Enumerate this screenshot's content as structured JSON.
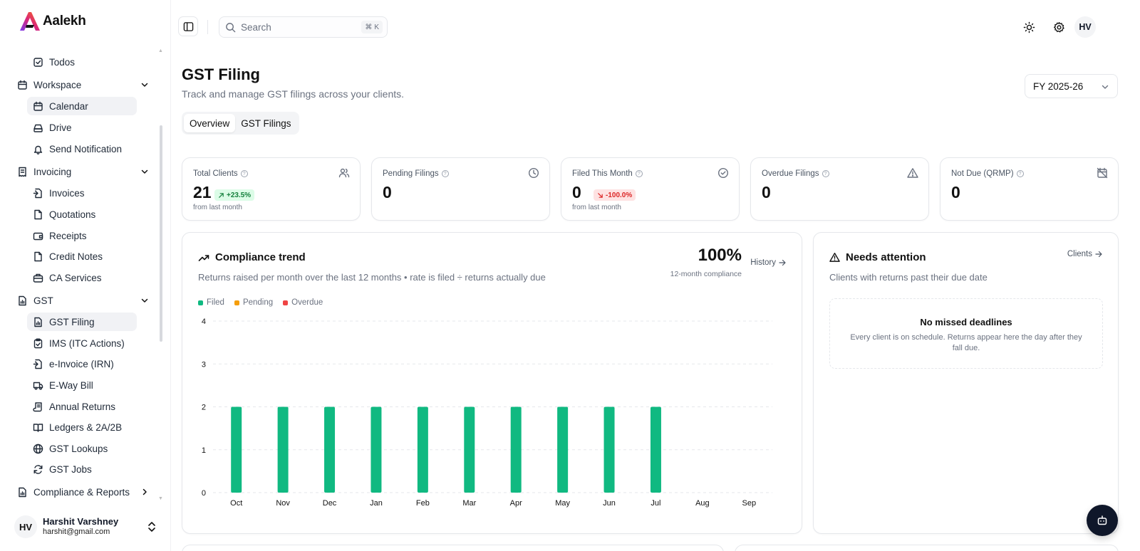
{
  "brand": {
    "name": "Aalekh"
  },
  "sidebar": {
    "items": [
      {
        "type": "sub",
        "label": "Todos",
        "icon": "square-check-icon",
        "active": false
      },
      {
        "type": "group",
        "label": "Workspace",
        "icon": "calendar-icon"
      },
      {
        "type": "sub",
        "label": "Calendar",
        "icon": "calendar-icon",
        "active": true
      },
      {
        "type": "sub",
        "label": "Drive",
        "icon": "hard-drive-icon",
        "active": false
      },
      {
        "type": "sub",
        "label": "Send Notification",
        "icon": "bell-icon",
        "active": false
      },
      {
        "type": "group",
        "label": "Invoicing",
        "icon": "receipt-icon"
      },
      {
        "type": "sub",
        "label": "Invoices",
        "icon": "file-import-icon",
        "active": false
      },
      {
        "type": "sub",
        "label": "Quotations",
        "icon": "file-quote-icon",
        "active": false
      },
      {
        "type": "sub",
        "label": "Receipts",
        "icon": "wallet-icon",
        "active": false
      },
      {
        "type": "sub",
        "label": "Credit Notes",
        "icon": "file-icon",
        "active": false
      },
      {
        "type": "sub",
        "label": "CA Services",
        "icon": "briefcase-icon",
        "active": false
      },
      {
        "type": "group",
        "label": "GST",
        "icon": "file-chart-icon"
      },
      {
        "type": "sub",
        "label": "GST Filing",
        "icon": "file-chart-icon",
        "active": true
      },
      {
        "type": "sub",
        "label": "IMS (ITC Actions)",
        "icon": "clipboard-check-icon",
        "active": false
      },
      {
        "type": "sub",
        "label": "e-Invoice (IRN)",
        "icon": "file-import-icon",
        "active": false
      },
      {
        "type": "sub",
        "label": "E-Way Bill",
        "icon": "truck-icon",
        "active": false
      },
      {
        "type": "sub",
        "label": "Annual Returns",
        "icon": "scroll-icon",
        "active": false
      },
      {
        "type": "sub",
        "label": "Ledgers & 2A/2B",
        "icon": "book-open-icon",
        "active": false
      },
      {
        "type": "sub",
        "label": "GST Lookups",
        "icon": "globe-icon",
        "active": false
      },
      {
        "type": "sub",
        "label": "GST Jobs",
        "icon": "refresh-icon",
        "active": false
      },
      {
        "type": "group-collapsed",
        "label": "Compliance & Reports",
        "icon": "file-chart-icon"
      }
    ]
  },
  "user": {
    "initials": "HV",
    "name": "Harshit Varshney",
    "email": "harshit@gmail.com"
  },
  "header": {
    "search_placeholder": "Search",
    "shortcut_symbol": "⌘",
    "shortcut_key": "K",
    "avatar_initials": "HV"
  },
  "page": {
    "title": "GST Filing",
    "subtitle": "Track and manage GST filings across your clients.",
    "fy_selected": "FY 2025-26",
    "tabs": [
      {
        "label": "Overview",
        "active": true
      },
      {
        "label": "GST Filings",
        "active": false
      }
    ]
  },
  "stats": [
    {
      "label": "Total Clients",
      "icon": "users-icon",
      "value": "21",
      "badge": "+23.5%",
      "badge_dir": "up",
      "foot": "from last month"
    },
    {
      "label": "Pending Filings",
      "icon": "clock-icon",
      "value": "0",
      "badge": "",
      "badge_dir": "",
      "foot": ""
    },
    {
      "label": "Filed This Month",
      "icon": "circle-check-icon",
      "value": "0",
      "badge": "-100.0%",
      "badge_dir": "down",
      "foot": "from last month"
    },
    {
      "label": "Overdue Filings",
      "icon": "triangle-alert-icon",
      "value": "0",
      "badge": "",
      "badge_dir": "",
      "foot": ""
    },
    {
      "label": "Not Due (QRMP)",
      "icon": "calendar-off-icon",
      "value": "0",
      "badge": "",
      "badge_dir": "",
      "foot": ""
    }
  ],
  "compliance": {
    "title": "Compliance trend",
    "subtitle": "Returns raised per month over the last 12 months • rate is filed ÷ returns actually due",
    "rate": "100%",
    "rate_label": "12-month compliance",
    "history_label": "History"
  },
  "attention": {
    "title": "Needs attention",
    "subtitle": "Clients with returns past their due date",
    "clients_label": "Clients",
    "empty_title": "No missed deadlines",
    "empty_desc": "Every client is on schedule. Returns appear here the day after they fall due."
  },
  "colors": {
    "filed": "#10b981",
    "pending": "#f59e0b",
    "overdue": "#ef4444",
    "accent": "#0f172a"
  },
  "chart_data": {
    "type": "bar",
    "categories": [
      "Oct",
      "Nov",
      "Dec",
      "Jan",
      "Feb",
      "Mar",
      "Apr",
      "May",
      "Jun",
      "Jul",
      "Aug",
      "Sep"
    ],
    "series": [
      {
        "name": "Filed",
        "values": [
          2,
          2,
          2,
          2,
          2,
          2,
          2,
          2,
          2,
          2,
          0,
          0
        ]
      },
      {
        "name": "Pending",
        "values": [
          0,
          0,
          0,
          0,
          0,
          0,
          0,
          0,
          0,
          0,
          0,
          0
        ]
      },
      {
        "name": "Overdue",
        "values": [
          0,
          0,
          0,
          0,
          0,
          0,
          0,
          0,
          0,
          0,
          0,
          0
        ]
      }
    ],
    "yticks": [
      0,
      1,
      2,
      3,
      4
    ],
    "ylim": [
      0,
      4
    ],
    "grid": true,
    "legend": "top-left",
    "title": "",
    "xlabel": "",
    "ylabel": ""
  }
}
